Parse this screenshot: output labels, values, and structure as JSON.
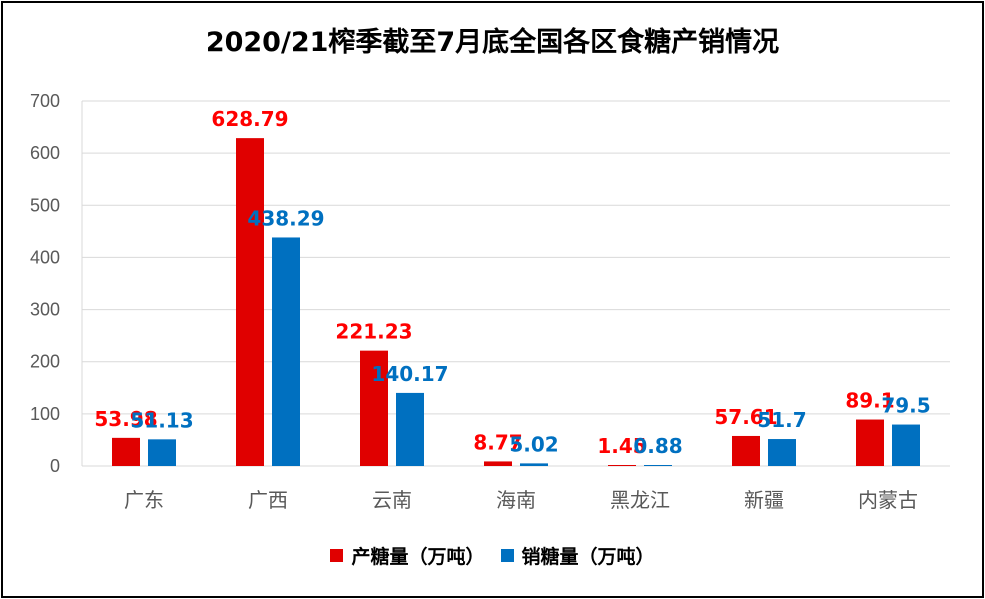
{
  "chart_data": {
    "type": "bar",
    "title": "2020/21榨季截至7月底全国各区食糖产销情况",
    "categories": [
      "广东",
      "广西",
      "云南",
      "海南",
      "黑龙江",
      "新疆",
      "内蒙古"
    ],
    "series": [
      {
        "name": "产糖量（万吨）",
        "values": [
          53.98,
          628.79,
          221.23,
          8.77,
          1.45,
          57.61,
          89.1
        ],
        "labels": [
          "53.98",
          "628.79",
          "221.23",
          "8.77",
          "1.45",
          "57.61",
          "89.1"
        ],
        "color": "#e00000",
        "label_color": "#ff0000"
      },
      {
        "name": "销糖量（万吨）",
        "values": [
          51.13,
          438.29,
          140.17,
          5.02,
          0.88,
          51.7,
          79.5
        ],
        "labels": [
          "51.13",
          "438.29",
          "140.17",
          "5.02",
          "0.88",
          "51.7",
          "79.5"
        ],
        "color": "#0070c0",
        "label_color": "#0070c0"
      }
    ],
    "ylim": [
      0,
      700
    ],
    "yticks": [
      "0",
      "100",
      "200",
      "300",
      "400",
      "500",
      "600",
      "700"
    ],
    "grid": true,
    "legend_position": "bottom"
  }
}
